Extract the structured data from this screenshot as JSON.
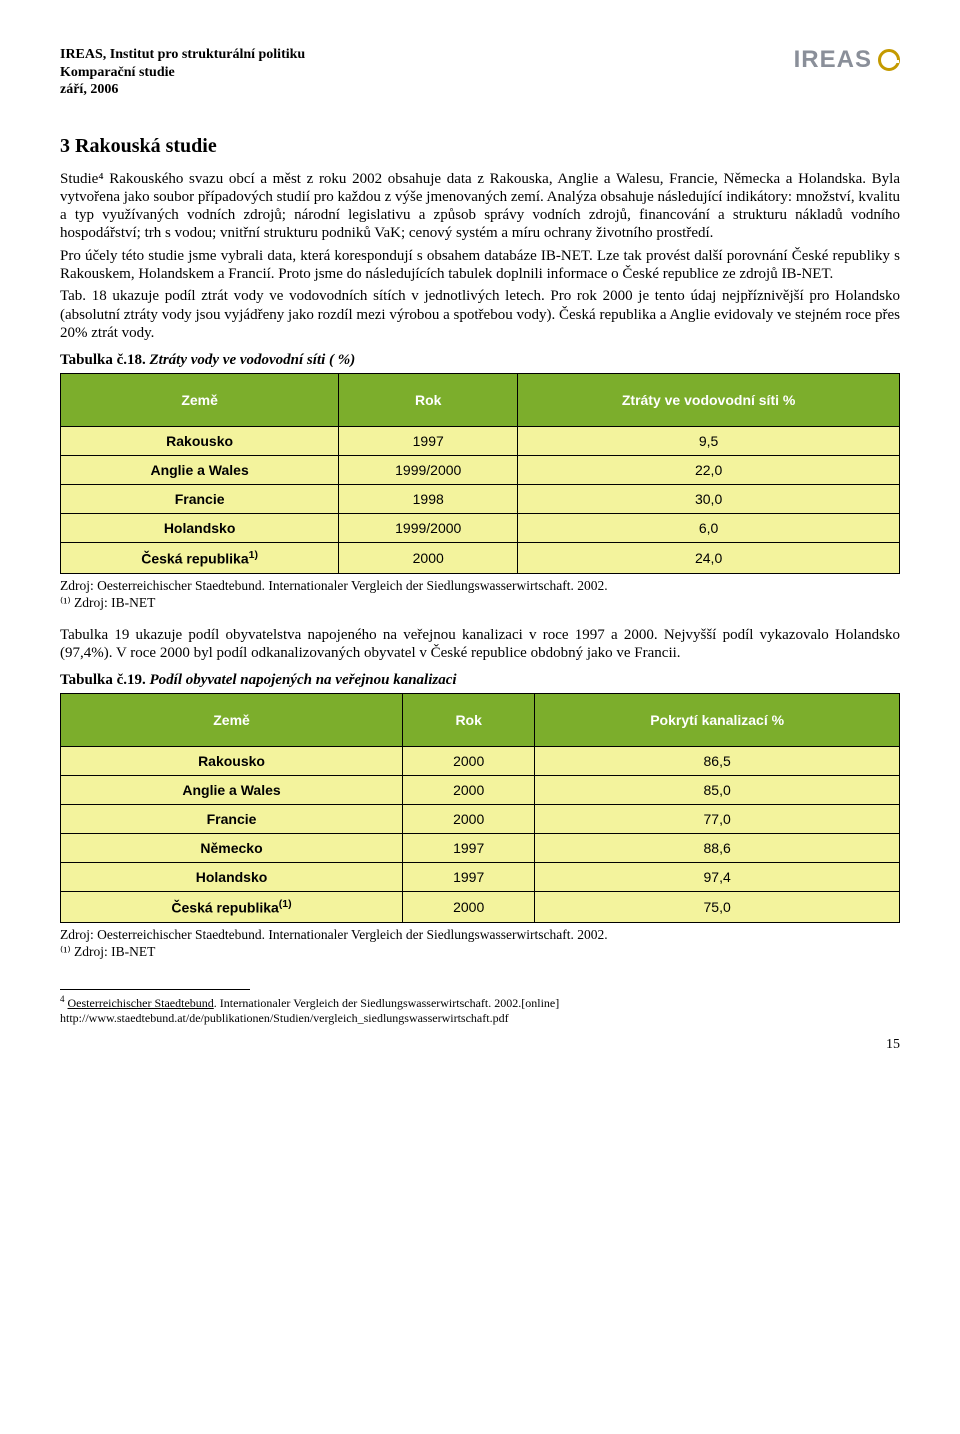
{
  "header": {
    "org": "IREAS, Institut pro strukturální politiku",
    "study": "Komparační studie",
    "date": "září, 2006",
    "logo_text": "IREAS",
    "logo_text_color": "#8a8f99",
    "logo_ring_color": "#c49a00"
  },
  "section": {
    "number_title": "3   Rakouská studie",
    "para1": "Studie⁴ Rakouského svazu obcí a měst z roku 2002 obsahuje data z Rakouska, Anglie a Walesu, Francie, Německa a Holandska. Byla vytvořena jako soubor případových studií pro každou z výše jmenovaných zemí. Analýza obsahuje následující indikátory: množství, kvalitu a typ využívaných vodních zdrojů; národní legislativu a způsob správy vodních zdrojů, financování a strukturu nákladů vodního hospodářství; trh s vodou; vnitřní strukturu podniků VaK; cenový systém a míru ochrany životního prostředí.",
    "para2": "Pro účely této studie jsme vybrali data, která korespondují s obsahem databáze IB-NET. Lze tak provést další porovnání České republiky s Rakouskem, Holandskem a Francií. Proto jsme do následujících tabulek doplnili informace o České republice ze zdrojů IB-NET.",
    "para3": "Tab. 18 ukazuje podíl ztrát vody ve vodovodních sítích v jednotlivých letech. Pro rok 2000 je tento údaj nejpříznivější pro Holandsko (absolutní ztráty vody jsou vyjádřeny jako rozdíl mezi výrobou a spotřebou vody). Česká republika a Anglie evidovaly ve stejném roce přes 20% ztrát vody."
  },
  "table18": {
    "caption_bold": "Tabulka č.18.",
    "caption_italic": "Ztráty vody ve vodovodní síti ( %)",
    "header_bg": "#7cae2c",
    "header_fg": "#ffffff",
    "body_bg": "#f3f39d",
    "cell_border": "#000000",
    "columns": [
      "Země",
      "Rok",
      "Ztráty ve vodovodní síti %"
    ],
    "rows": [
      {
        "country": "Rakousko",
        "year": "1997",
        "value": "9,5"
      },
      {
        "country": "Anglie a Wales",
        "year": "1999/2000",
        "value": "22,0"
      },
      {
        "country": "Francie",
        "year": "1998",
        "value": "30,0"
      },
      {
        "country": "Holandsko",
        "year": "1999/2000",
        "value": "6,0"
      },
      {
        "country": "Česká republika",
        "sup": "1)",
        "year": "2000",
        "value": "24,0"
      }
    ],
    "source_line1": "Zdroj: Oesterreichischer Staedtebund. Internationaler Vergleich der Siedlungswasserwirtschaft. 2002.",
    "source_line2": "⁽¹⁾ Zdroj: IB-NET"
  },
  "mid_para": "Tabulka 19 ukazuje podíl obyvatelstva napojeného na veřejnou kanalizaci v roce 1997 a 2000. Nejvyšší podíl vykazovalo Holandsko (97,4%). V roce 2000 byl podíl odkanalizovaných obyvatel v České republice obdobný jako ve Francii.",
  "table19": {
    "caption_bold": "Tabulka č.19.",
    "caption_italic": "Podíl obyvatel napojených na veřejnou kanalizaci",
    "header_bg": "#7cae2c",
    "header_fg": "#ffffff",
    "body_bg": "#f3f39d",
    "cell_border": "#000000",
    "columns": [
      "Země",
      "Rok",
      "Pokrytí kanalizací %"
    ],
    "rows": [
      {
        "country": "Rakousko",
        "year": "2000",
        "value": "86,5"
      },
      {
        "country": "Anglie a Wales",
        "year": "2000",
        "value": "85,0"
      },
      {
        "country": "Francie",
        "year": "2000",
        "value": "77,0"
      },
      {
        "country": "Německo",
        "year": "1997",
        "value": "88,6"
      },
      {
        "country": "Holandsko",
        "year": "1997",
        "value": "97,4"
      },
      {
        "country": "Česká republika",
        "sup": "(1)",
        "year": "2000",
        "value": "75,0"
      }
    ],
    "source_line1": "Zdroj: Oesterreichischer Staedtebund. Internationaler Vergleich der Siedlungswasserwirtschaft. 2002.",
    "source_line2": "⁽¹⁾ Zdroj: IB-NET"
  },
  "footnote": {
    "marker": "4",
    "text_underline": "Oesterreichischer Staedtebund",
    "text_rest": ". Internationaler Vergleich der Siedlungswasserwirtschaft. 2002.[online]",
    "url": "http://www.staedtebund.at/de/publikationen/Studien/vergleich_siedlungswasserwirtschaft.pdf"
  },
  "page_number": "15"
}
